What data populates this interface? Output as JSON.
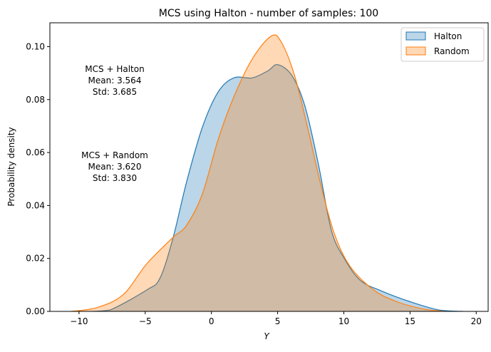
{
  "chart_data": {
    "type": "area",
    "title": "MCS using Halton - number of samples: 100",
    "xlabel": "Y",
    "ylabel": "Probability density",
    "xlim": [
      -12.2,
      20.9
    ],
    "ylim": [
      0,
      0.109
    ],
    "xticks": [
      -10,
      -5,
      0,
      5,
      10,
      15,
      20
    ],
    "yticks": [
      0.0,
      0.02,
      0.04,
      0.06,
      0.08,
      0.1
    ],
    "xtick_labels": [
      "−10",
      "−5",
      "0",
      "5",
      "10",
      "15",
      "20"
    ],
    "ytick_labels": [
      "0.00",
      "0.02",
      "0.04",
      "0.06",
      "0.08",
      "0.10"
    ],
    "grid": false,
    "legend_position": "top-right",
    "series": [
      {
        "name": "Halton",
        "color": "#1f77b4",
        "fill": "#a6c8e3",
        "x": [
          -9.0,
          -7.67,
          -4.88,
          -3.88,
          -2.89,
          -1.89,
          -0.7,
          0.5,
          1.69,
          3.09,
          4.28,
          5.0,
          6.08,
          7.07,
          8.07,
          9.06,
          10.06,
          11.25,
          12.85,
          15.04,
          17.2,
          19.0
        ],
        "y": [
          0,
          0.0005,
          0.0081,
          0.0126,
          0.0279,
          0.0486,
          0.0693,
          0.0828,
          0.0882,
          0.0882,
          0.0909,
          0.0932,
          0.0891,
          0.0774,
          0.0558,
          0.0306,
          0.0198,
          0.0117,
          0.0077,
          0.0036,
          0.0005,
          0
        ]
      },
      {
        "name": "Random",
        "color": "#ff7f0e",
        "fill": "#ffbe86",
        "x": [
          -10.6,
          -8.67,
          -6.67,
          -4.88,
          -2.89,
          -1.89,
          -0.7,
          0.5,
          1.69,
          3.09,
          4.52,
          5.28,
          6.28,
          7.27,
          8.27,
          9.26,
          10.46,
          12.25,
          14.04,
          16.03,
          17.6
        ],
        "y": [
          0,
          0.0014,
          0.0063,
          0.018,
          0.028,
          0.0324,
          0.0441,
          0.0648,
          0.081,
          0.0954,
          0.104,
          0.1017,
          0.0891,
          0.0693,
          0.0477,
          0.0297,
          0.0171,
          0.0081,
          0.0036,
          0.0009,
          0
        ]
      }
    ],
    "annotations": [
      {
        "lines": [
          "MCS + Halton",
          "Mean: 3.564",
          "Std: 3.685"
        ]
      },
      {
        "lines": [
          "MCS + Random",
          "Mean: 3.620",
          "Std: 3.830"
        ]
      }
    ]
  }
}
